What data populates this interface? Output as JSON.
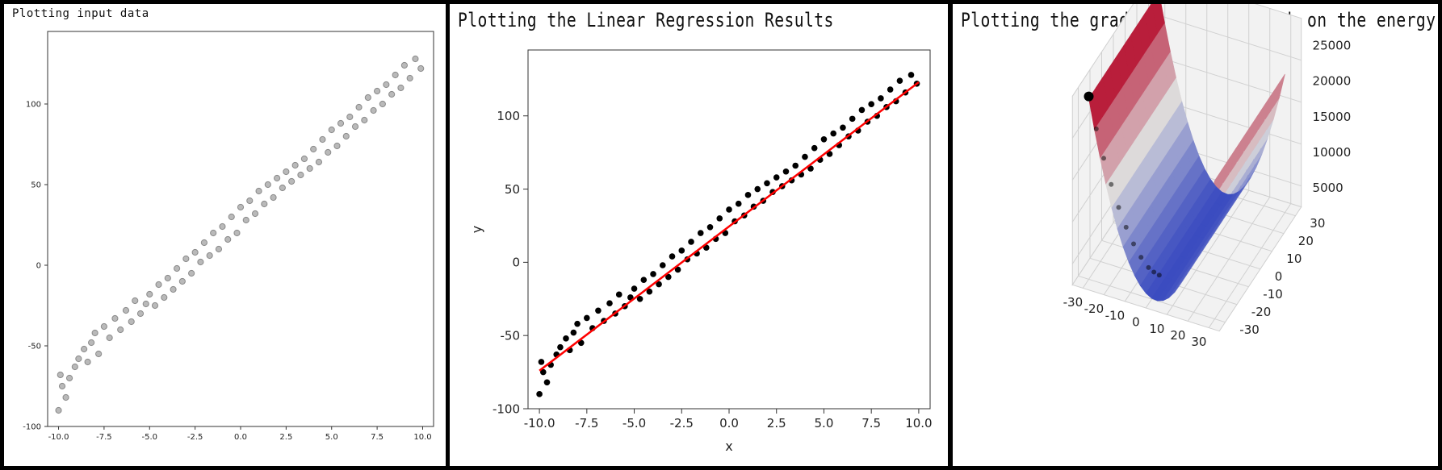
{
  "chart_data": [
    {
      "type": "scatter",
      "title": "Plotting input data",
      "xlabel": "",
      "ylabel": "",
      "xlim": [
        -10.6,
        10.6
      ],
      "ylim": [
        -100,
        145
      ],
      "xticks": [
        "-10.0",
        "-7.5",
        "-5.0",
        "-2.5",
        "0.0",
        "2.5",
        "5.0",
        "7.5",
        "10.0"
      ],
      "yticks": [
        "-100",
        "-50",
        "0",
        "50",
        "100"
      ],
      "grid": false,
      "point_color": "#808080",
      "series": [
        {
          "x": [
            -10,
            -9.9,
            -9.8,
            -9.6,
            -9.4,
            -9.1,
            -8.9,
            -8.6,
            -8.4,
            -8.2,
            -8,
            -7.8,
            -7.5,
            -7.2,
            -6.9,
            -6.6,
            -6.3,
            -6,
            -5.8,
            -5.5,
            -5.2,
            -5,
            -4.7,
            -4.5,
            -4.2,
            -4,
            -3.7,
            -3.5,
            -3.2,
            -3,
            -2.7,
            -2.5,
            -2.2,
            -2,
            -1.7,
            -1.5,
            -1.2,
            -1,
            -0.7,
            -0.5,
            -0.2,
            0,
            0.3,
            0.5,
            0.8,
            1,
            1.3,
            1.5,
            1.8,
            2,
            2.3,
            2.5,
            2.8,
            3,
            3.3,
            3.5,
            3.8,
            4,
            4.3,
            4.5,
            4.8,
            5,
            5.3,
            5.5,
            5.8,
            6,
            6.3,
            6.5,
            6.8,
            7,
            7.3,
            7.5,
            7.8,
            8,
            8.3,
            8.5,
            8.8,
            9,
            9.3,
            9.6,
            9.9
          ],
          "y": [
            -90,
            -68,
            -75,
            -82,
            -70,
            -63,
            -58,
            -52,
            -60,
            -48,
            -42,
            -55,
            -38,
            -45,
            -33,
            -40,
            -28,
            -35,
            -22,
            -30,
            -24,
            -18,
            -25,
            -12,
            -20,
            -8,
            -15,
            -2,
            -10,
            4,
            -5,
            8,
            2,
            14,
            6,
            20,
            10,
            24,
            16,
            30,
            20,
            36,
            28,
            40,
            32,
            46,
            38,
            50,
            42,
            54,
            48,
            58,
            52,
            62,
            56,
            66,
            60,
            72,
            64,
            78,
            70,
            84,
            74,
            88,
            80,
            92,
            86,
            98,
            90,
            104,
            96,
            108,
            100,
            112,
            106,
            118,
            110,
            124,
            116,
            128,
            122
          ]
        }
      ]
    },
    {
      "type": "scatter",
      "title": "Plotting the Linear Regression Results",
      "xlabel": "x",
      "ylabel": "y",
      "xlim": [
        -10.6,
        10.6
      ],
      "ylim": [
        -100,
        145
      ],
      "xticks": [
        "-10.0",
        "-7.5",
        "-5.0",
        "-2.5",
        "0.0",
        "2.5",
        "5.0",
        "7.5",
        "10.0"
      ],
      "yticks": [
        "-100",
        "-50",
        "0",
        "50",
        "100"
      ],
      "grid": false,
      "point_color": "#000000",
      "line_color": "#ff0000",
      "series": [
        {
          "x": [
            -10,
            -9.9,
            -9.8,
            -9.6,
            -9.4,
            -9.1,
            -8.9,
            -8.6,
            -8.4,
            -8.2,
            -8,
            -7.8,
            -7.5,
            -7.2,
            -6.9,
            -6.6,
            -6.3,
            -6,
            -5.8,
            -5.5,
            -5.2,
            -5,
            -4.7,
            -4.5,
            -4.2,
            -4,
            -3.7,
            -3.5,
            -3.2,
            -3,
            -2.7,
            -2.5,
            -2.2,
            -2,
            -1.7,
            -1.5,
            -1.2,
            -1,
            -0.7,
            -0.5,
            -0.2,
            0,
            0.3,
            0.5,
            0.8,
            1,
            1.3,
            1.5,
            1.8,
            2,
            2.3,
            2.5,
            2.8,
            3,
            3.3,
            3.5,
            3.8,
            4,
            4.3,
            4.5,
            4.8,
            5,
            5.3,
            5.5,
            5.8,
            6,
            6.3,
            6.5,
            6.8,
            7,
            7.3,
            7.5,
            7.8,
            8,
            8.3,
            8.5,
            8.8,
            9,
            9.3,
            9.6,
            9.9
          ],
          "y": [
            -90,
            -68,
            -75,
            -82,
            -70,
            -63,
            -58,
            -52,
            -60,
            -48,
            -42,
            -55,
            -38,
            -45,
            -33,
            -40,
            -28,
            -35,
            -22,
            -30,
            -24,
            -18,
            -25,
            -12,
            -20,
            -8,
            -15,
            -2,
            -10,
            4,
            -5,
            8,
            2,
            14,
            6,
            20,
            10,
            24,
            16,
            30,
            20,
            36,
            28,
            40,
            32,
            46,
            38,
            50,
            42,
            54,
            48,
            58,
            52,
            62,
            56,
            66,
            60,
            72,
            64,
            78,
            70,
            84,
            74,
            88,
            80,
            92,
            86,
            98,
            90,
            104,
            96,
            108,
            100,
            112,
            106,
            118,
            110,
            124,
            116,
            128,
            122
          ]
        },
        {
          "x": [
            -10,
            10
          ],
          "y": [
            -74,
            123
          ]
        }
      ]
    },
    {
      "type": "surface",
      "title": "Plotting the gradient descent path on the energy surface",
      "xticks": [
        "-30",
        "-20",
        "-10",
        "0",
        "10",
        "20",
        "30"
      ],
      "yticks": [
        "-30",
        "-20",
        "-10",
        "0",
        "10",
        "20",
        "30"
      ],
      "zticks": [
        "5000",
        "10000",
        "15000",
        "20000",
        "25000"
      ],
      "colormap": [
        "#3b4cc0",
        "#dddcdc",
        "#b40426"
      ],
      "grid": true
    }
  ]
}
